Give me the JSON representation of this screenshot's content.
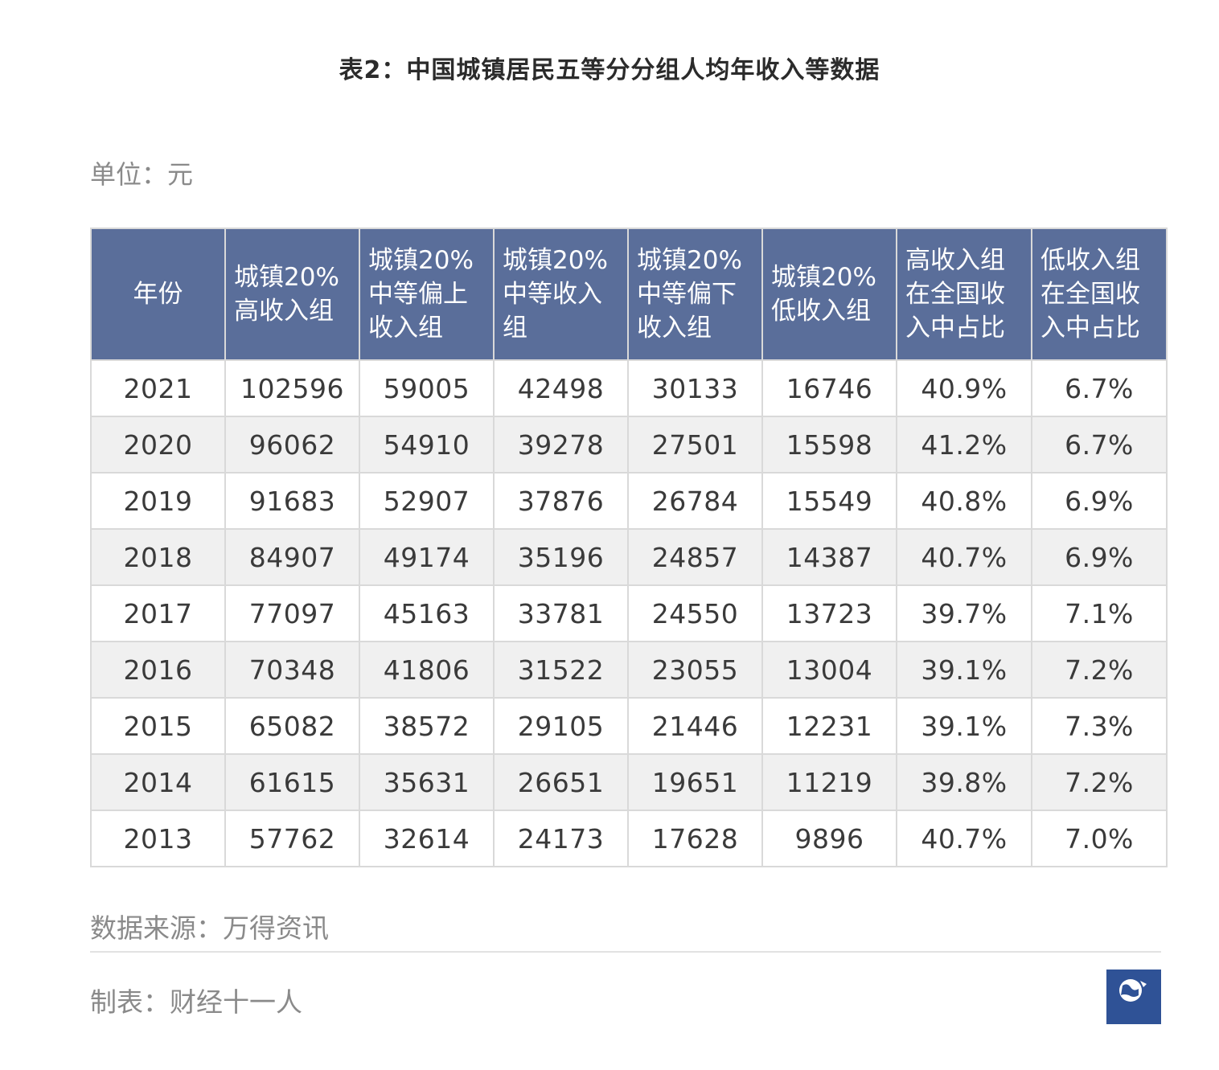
{
  "title": "表2：中国城镇居民五等分分组人均年收入等数据",
  "unit": "单位：元",
  "source": "数据来源：万得资讯",
  "maker": "制表：财经十一人",
  "logo_text": "财经十一人",
  "colors": {
    "header_bg": "#5a6e9a",
    "header_text": "#ffffff",
    "alt_row": "#f0f0f0",
    "border": "#d9d9d9",
    "logo_bg": "#2f5296"
  },
  "chart_data": {
    "type": "table",
    "columns": [
      "年份",
      "城镇20%高收入组",
      "城镇20%中等偏上收入组",
      "城镇20%中等收入组",
      "城镇20%中等偏下收入组",
      "城镇20%低收入组",
      "高收入组在全国收入中占比",
      "低收入组在全国收入中占比"
    ],
    "header_lines": [
      [
        "年份"
      ],
      [
        "城镇20%",
        "高收入组"
      ],
      [
        "城镇20%",
        "中等偏上",
        "收入组"
      ],
      [
        "城镇20%",
        "中等收入",
        "组"
      ],
      [
        "城镇20%",
        "中等偏下",
        "收入组"
      ],
      [
        "城镇20%",
        "低收入组"
      ],
      [
        "高收入组",
        "在全国收",
        "入中占比"
      ],
      [
        "低收入组",
        "在全国收",
        "入中占比"
      ]
    ],
    "rows": [
      [
        "2021",
        "102596",
        "59005",
        "42498",
        "30133",
        "16746",
        "40.9%",
        "6.7%"
      ],
      [
        "2020",
        "96062",
        "54910",
        "39278",
        "27501",
        "15598",
        "41.2%",
        "6.7%"
      ],
      [
        "2019",
        "91683",
        "52907",
        "37876",
        "26784",
        "15549",
        "40.8%",
        "6.9%"
      ],
      [
        "2018",
        "84907",
        "49174",
        "35196",
        "24857",
        "14387",
        "40.7%",
        "6.9%"
      ],
      [
        "2017",
        "77097",
        "45163",
        "33781",
        "24550",
        "13723",
        "39.7%",
        "7.1%"
      ],
      [
        "2016",
        "70348",
        "41806",
        "31522",
        "23055",
        "13004",
        "39.1%",
        "7.2%"
      ],
      [
        "2015",
        "65082",
        "38572",
        "29105",
        "21446",
        "12231",
        "39.1%",
        "7.3%"
      ],
      [
        "2014",
        "61615",
        "35631",
        "26651",
        "19651",
        "11219",
        "39.8%",
        "7.2%"
      ],
      [
        "2013",
        "57762",
        "32614",
        "24173",
        "17628",
        "9896",
        "40.7%",
        "7.0%"
      ]
    ]
  }
}
